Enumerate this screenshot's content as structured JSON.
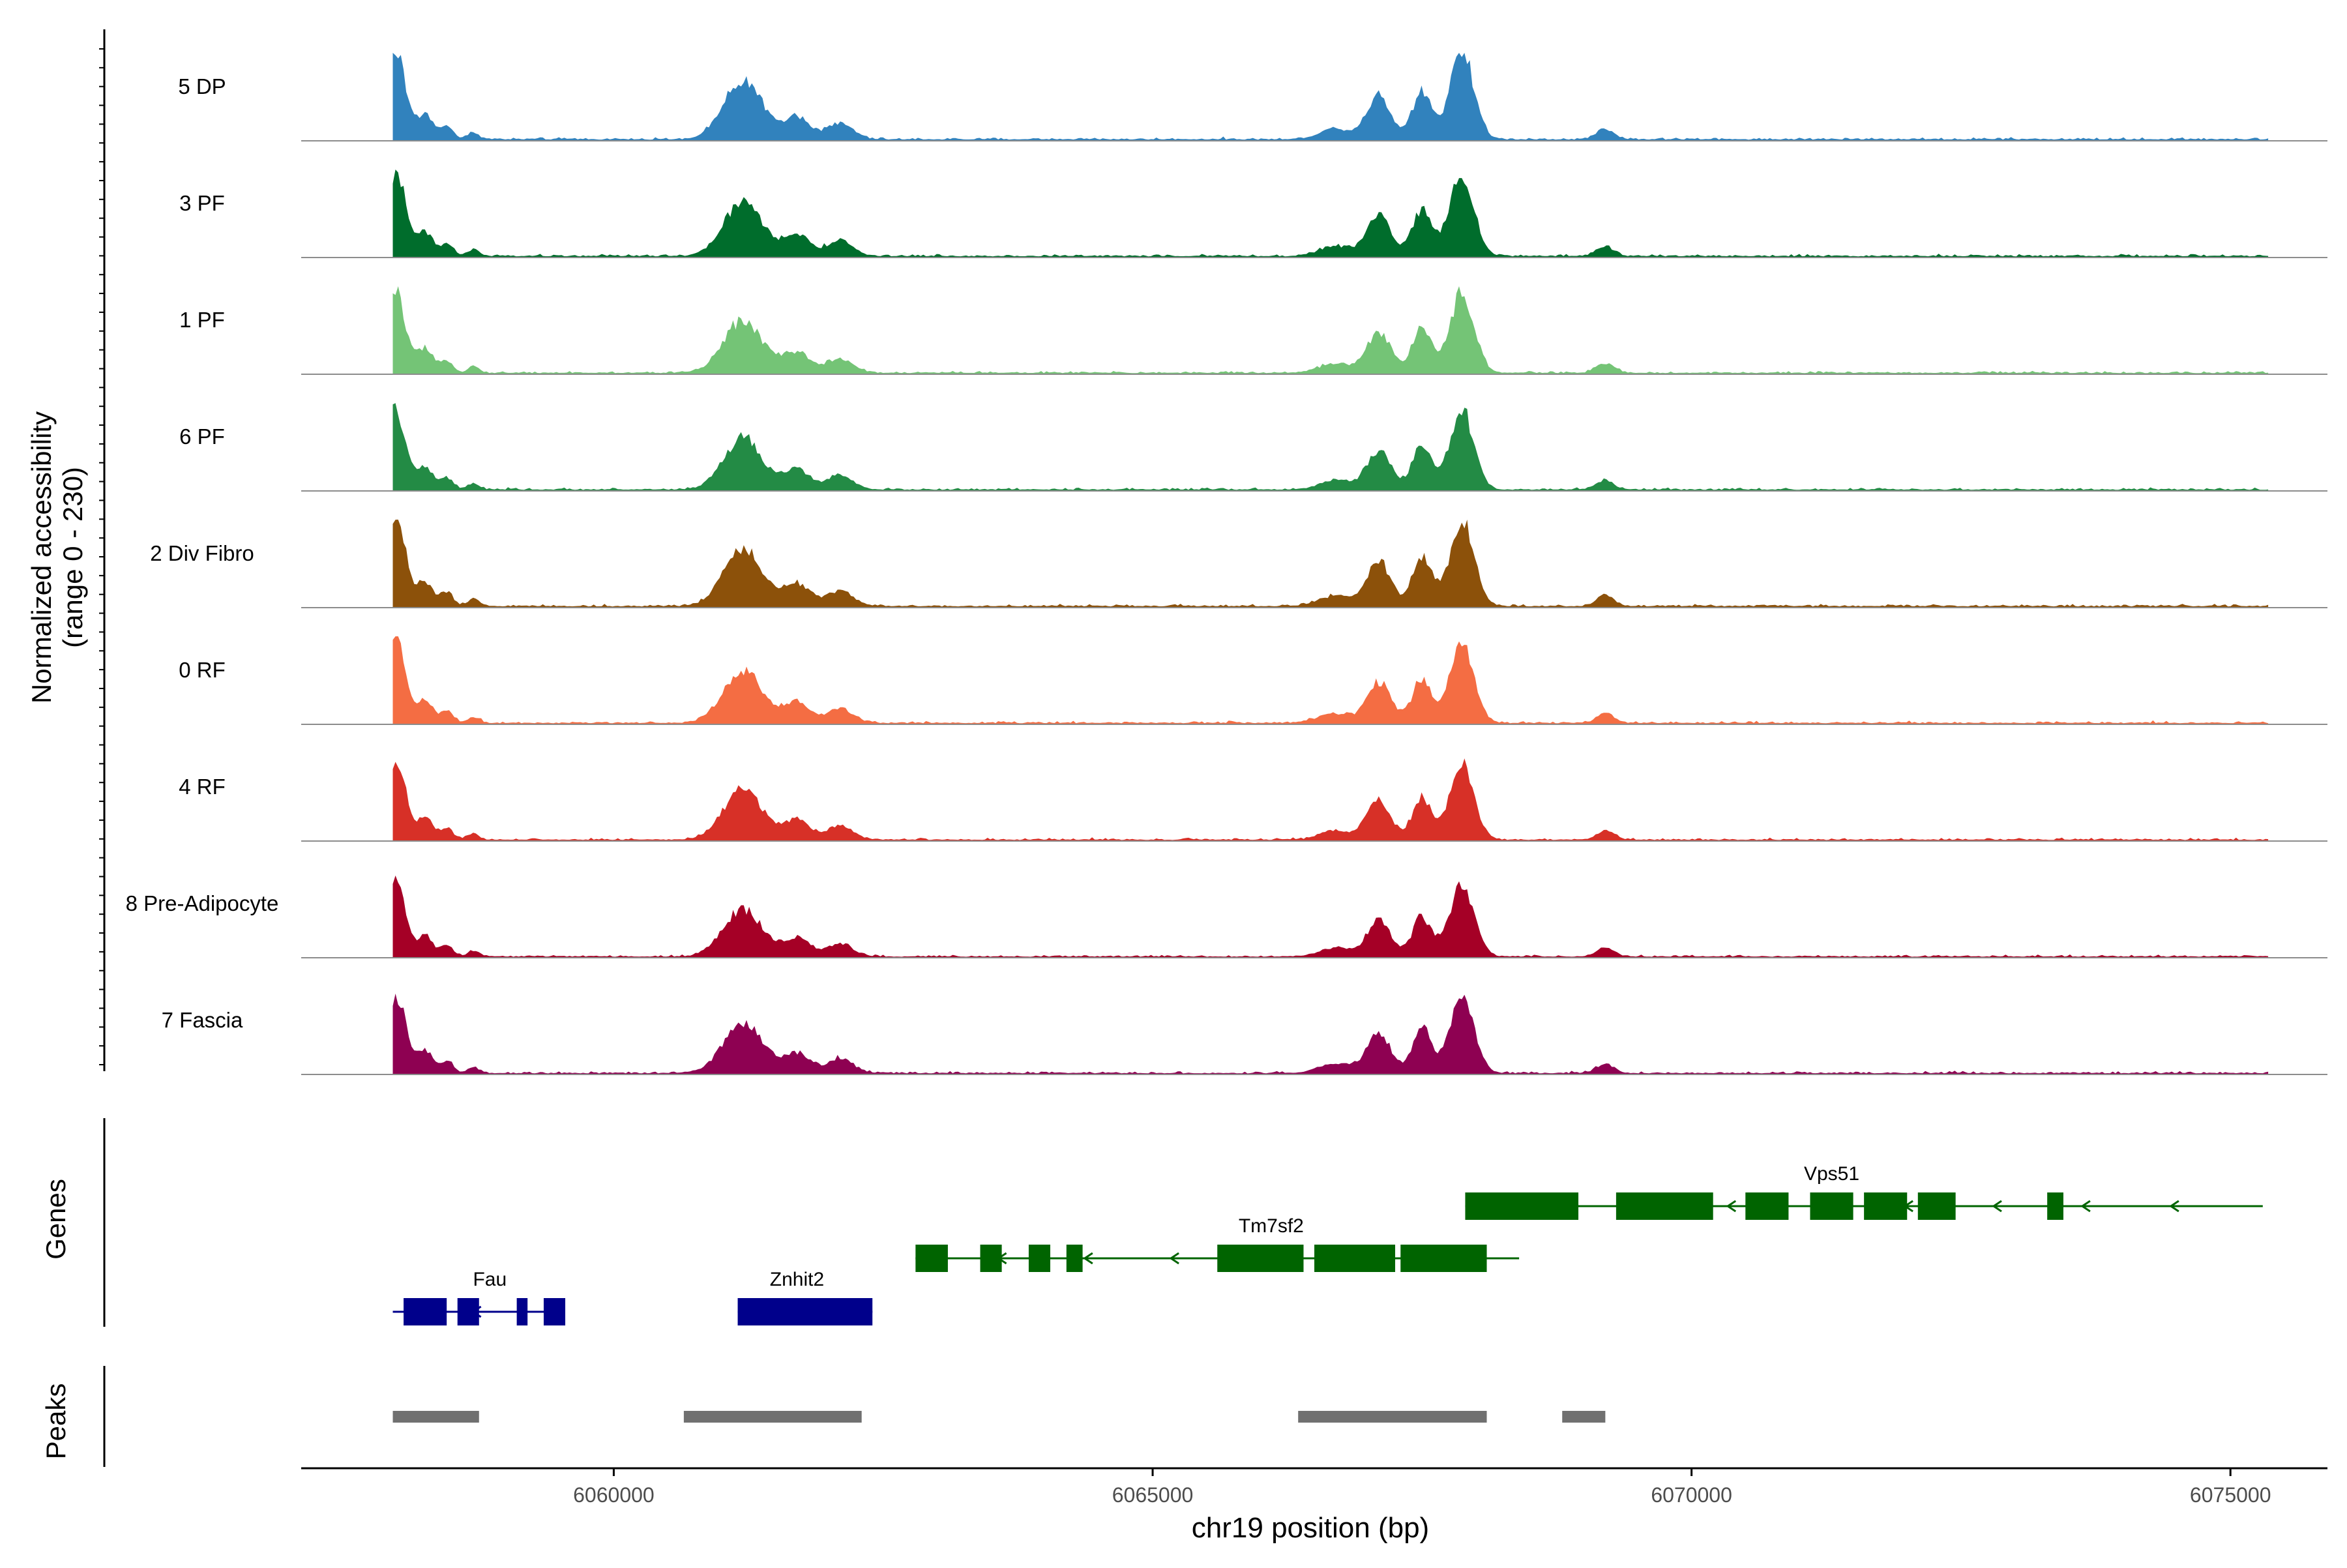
{
  "chart_data": {
    "type": "area",
    "title": "",
    "chromosome": "chr19",
    "xlabel": "chr19 position (bp)",
    "ylabel_line1": "Normalized accessibility",
    "ylabel_line2": "(range 0 - 230)",
    "xlim": [
      6057100,
      6075900
    ],
    "ylim": [
      0,
      230
    ],
    "x_ticks": [
      6060000,
      6065000,
      6070000,
      6075000
    ],
    "x_tick_labels": [
      "6060000",
      "6065000",
      "6070000",
      "6075000"
    ],
    "data_range": [
      6057950,
      6075350
    ],
    "peak_template": [
      {
        "center": 6057980,
        "width": 90,
        "height": 1.0
      },
      {
        "center": 6058250,
        "width": 70,
        "height": 0.28
      },
      {
        "center": 6058450,
        "width": 60,
        "height": 0.15
      },
      {
        "center": 6058700,
        "width": 50,
        "height": 0.08
      },
      {
        "center": 6061200,
        "width": 180,
        "height": 0.65
      },
      {
        "center": 6061700,
        "width": 120,
        "height": 0.25
      },
      {
        "center": 6062100,
        "width": 120,
        "height": 0.18
      },
      {
        "center": 6066700,
        "width": 150,
        "height": 0.12
      },
      {
        "center": 6067100,
        "width": 110,
        "height": 0.5
      },
      {
        "center": 6067500,
        "width": 90,
        "height": 0.55
      },
      {
        "center": 6067870,
        "width": 110,
        "height": 1.0
      },
      {
        "center": 6069200,
        "width": 80,
        "height": 0.12
      }
    ],
    "tracks": [
      {
        "name": "5 DP",
        "color": "#3182bd",
        "scale": 1.0
      },
      {
        "name": "3 PF",
        "color": "#006d2c",
        "scale": 0.95
      },
      {
        "name": "1 PF",
        "color": "#74c476",
        "scale": 0.92
      },
      {
        "name": "6 PF",
        "color": "#238b45",
        "scale": 0.9
      },
      {
        "name": "2 Div Fibro",
        "color": "#8c510a",
        "scale": 1.0
      },
      {
        "name": "0 RF",
        "color": "#f46d43",
        "scale": 0.92
      },
      {
        "name": "4 RF",
        "color": "#d73027",
        "scale": 0.88
      },
      {
        "name": "8 Pre-Adipocyte",
        "color": "#a50026",
        "scale": 0.82
      },
      {
        "name": "7 Fascia",
        "color": "#8e0152",
        "scale": 0.9
      }
    ],
    "genes_label": "Genes",
    "genes": [
      {
        "name": "Vps51",
        "start": 6067900,
        "end": 6075300,
        "strand": "-",
        "row": 0,
        "label_x": 6071300,
        "exons": [
          [
            6067900,
            6068950
          ],
          [
            6069300,
            6070200
          ],
          [
            6070500,
            6070900
          ],
          [
            6071100,
            6071500
          ],
          [
            6071600,
            6072000
          ],
          [
            6072100,
            6072450
          ],
          [
            6073300,
            6073450
          ]
        ]
      },
      {
        "name": "Tm7sf2",
        "start": 6062800,
        "end": 6068400,
        "strand": "-",
        "row": 1,
        "label_x": 6066100,
        "exons": [
          [
            6062800,
            6063100
          ],
          [
            6063400,
            6063600
          ],
          [
            6063850,
            6064050
          ],
          [
            6064200,
            6064350
          ],
          [
            6065600,
            6066400
          ],
          [
            6066500,
            6067250
          ],
          [
            6067300,
            6068100
          ]
        ]
      },
      {
        "name": "Fau",
        "start": 6057950,
        "end": 6059500,
        "strand": "-",
        "row": 2,
        "label_x": 6058850,
        "exons": [
          [
            6058050,
            6058450
          ],
          [
            6058550,
            6058750
          ],
          [
            6059100,
            6059200
          ],
          [
            6059350,
            6059550
          ]
        ]
      },
      {
        "name": "Znhit2",
        "start": 6061150,
        "end": 6062400,
        "strand": "-",
        "row": 2,
        "label_x": 6061700,
        "exons": [
          [
            6061150,
            6062400
          ]
        ]
      }
    ],
    "peaks_label": "Peaks",
    "peaks": [
      [
        6057950,
        6058750
      ],
      [
        6060650,
        6062300
      ],
      [
        6066350,
        6068100
      ],
      [
        6068800,
        6069200
      ]
    ]
  }
}
